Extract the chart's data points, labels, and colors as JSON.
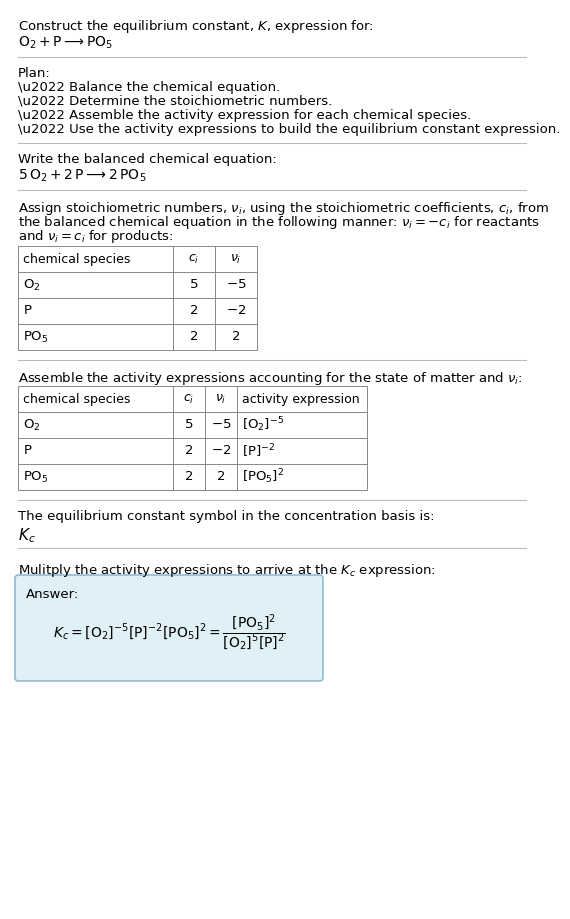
{
  "bg_color": "#ffffff",
  "text_color": "#000000",
  "title_line1": "Construct the equilibrium constant, $K$, expression for:",
  "title_line2": "$\\mathrm{O_2 + P \\longrightarrow PO_5}$",
  "plan_header": "Plan:",
  "plan_bullets": [
    "\\u2022 Balance the chemical equation.",
    "\\u2022 Determine the stoichiometric numbers.",
    "\\u2022 Assemble the activity expression for each chemical species.",
    "\\u2022 Use the activity expressions to build the equilibrium constant expression."
  ],
  "balanced_header": "Write the balanced chemical equation:",
  "balanced_eq": "$5\\,\\mathrm{O_2} + 2\\,\\mathrm{P} \\longrightarrow 2\\,\\mathrm{PO_5}$",
  "table1_headers": [
    "chemical species",
    "$c_i$",
    "$\\nu_i$"
  ],
  "table1_rows": [
    [
      "$\\mathrm{O_2}$",
      "5",
      "$-5$"
    ],
    [
      "$\\mathrm{P}$",
      "2",
      "$-2$"
    ],
    [
      "$\\mathrm{PO_5}$",
      "2",
      "2"
    ]
  ],
  "assemble_text": "Assemble the activity expressions accounting for the state of matter and $\\nu_i$:",
  "table2_headers": [
    "chemical species",
    "$c_i$",
    "$\\nu_i$",
    "activity expression"
  ],
  "table2_rows": [
    [
      "$\\mathrm{O_2}$",
      "5",
      "$-5$",
      "$[\\mathrm{O_2}]^{-5}$"
    ],
    [
      "$\\mathrm{P}$",
      "2",
      "$-2$",
      "$[\\mathrm{P}]^{-2}$"
    ],
    [
      "$\\mathrm{PO_5}$",
      "2",
      "2",
      "$[\\mathrm{PO_5}]^{2}$"
    ]
  ],
  "kc_text1": "The equilibrium constant symbol in the concentration basis is:",
  "kc_symbol": "$K_c$",
  "multiply_text": "Mulitply the activity expressions to arrive at the $K_c$ expression:",
  "answer_label": "Answer:",
  "answer_box_color": "#dff0f7",
  "answer_box_border": "#90bcd0",
  "font_size": 9.5,
  "line_color": "#bbbbbb"
}
